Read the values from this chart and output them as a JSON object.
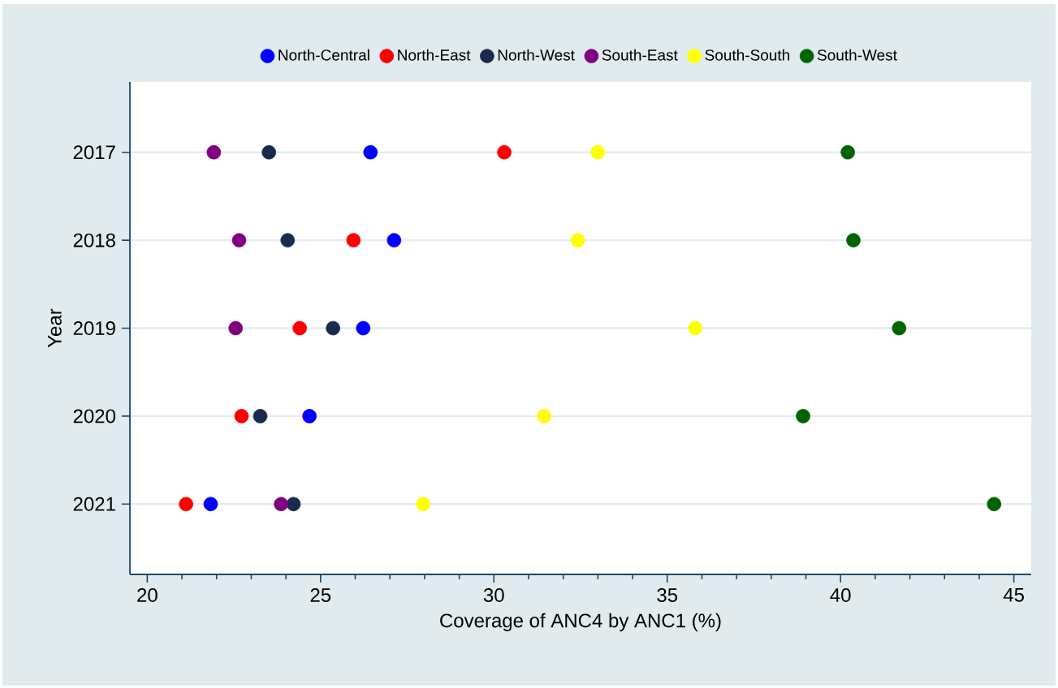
{
  "chart_data": {
    "type": "scatter",
    "xlabel": "Coverage of ANC4 by ANC1 (%)",
    "ylabel": "Year",
    "xlim": [
      19.5,
      45.5
    ],
    "xticks": [
      20,
      25,
      30,
      35,
      40,
      45
    ],
    "ylim": [
      2021.8,
      2016.2
    ],
    "yticks": [
      2017,
      2018,
      2019,
      2020,
      2021
    ],
    "grid": "y",
    "legend": "top",
    "series": [
      {
        "name": "North-Central",
        "color": "#0000ff",
        "x": [
          26.44,
          27.12,
          26.23,
          24.68,
          21.83
        ],
        "values": [
          2017,
          2018,
          2019,
          2020,
          2021
        ]
      },
      {
        "name": "North-East",
        "color": "#ff0000",
        "x": [
          30.3,
          25.95,
          24.4,
          22.72,
          21.12
        ],
        "values": [
          2017,
          2018,
          2019,
          2020,
          2021
        ]
      },
      {
        "name": "North-West",
        "color": "#1a2a4f",
        "x": [
          23.51,
          24.05,
          25.36,
          23.26,
          24.22
        ],
        "values": [
          2017,
          2018,
          2019,
          2020,
          2021
        ]
      },
      {
        "name": "South-East",
        "color": "#800080",
        "x": [
          21.92,
          22.65,
          22.55,
          null,
          23.86
        ],
        "values": [
          2017,
          2018,
          2019,
          null,
          2021
        ]
      },
      {
        "name": "South-South",
        "color": "#ffff00",
        "x": [
          33.0,
          32.42,
          35.81,
          31.45,
          27.96
        ],
        "values": [
          2017,
          2018,
          2019,
          2020,
          2021
        ]
      },
      {
        "name": "South-West",
        "color": "#006400",
        "x": [
          40.21,
          40.37,
          41.69,
          38.92,
          44.43
        ],
        "values": [
          2017,
          2018,
          2019,
          2020,
          2021
        ]
      }
    ]
  }
}
